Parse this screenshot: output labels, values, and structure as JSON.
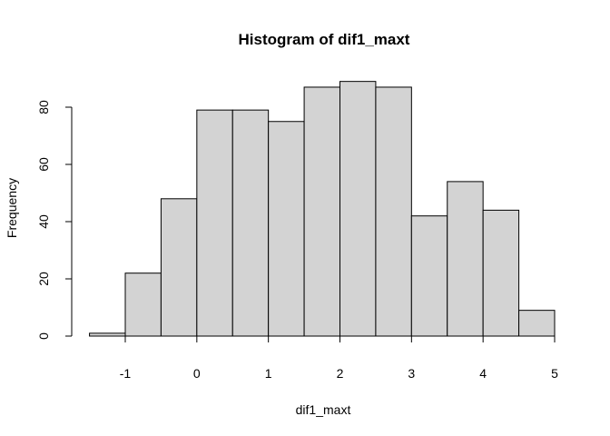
{
  "chart_data": {
    "type": "bar",
    "subtype": "histogram",
    "title": "Histogram of dif1_maxt",
    "xlabel": "dif1_maxt",
    "ylabel": "Frequency",
    "bins": [
      {
        "start": -1.5,
        "end": -1.0,
        "count": 1
      },
      {
        "start": -1.0,
        "end": -0.5,
        "count": 22
      },
      {
        "start": -0.5,
        "end": 0.0,
        "count": 48
      },
      {
        "start": 0.0,
        "end": 0.5,
        "count": 79
      },
      {
        "start": 0.5,
        "end": 1.0,
        "count": 79
      },
      {
        "start": 1.0,
        "end": 1.5,
        "count": 75
      },
      {
        "start": 1.5,
        "end": 2.0,
        "count": 87
      },
      {
        "start": 2.0,
        "end": 2.5,
        "count": 89
      },
      {
        "start": 2.5,
        "end": 3.0,
        "count": 87
      },
      {
        "start": 3.0,
        "end": 3.5,
        "count": 42
      },
      {
        "start": 3.5,
        "end": 4.0,
        "count": 54
      },
      {
        "start": 4.0,
        "end": 4.5,
        "count": 44
      },
      {
        "start": 4.5,
        "end": 5.0,
        "count": 9
      }
    ],
    "xlim": [
      -1.5,
      5.0
    ],
    "ylim": [
      0,
      90
    ],
    "x_ticks": [
      -1,
      0,
      1,
      2,
      3,
      4,
      5
    ],
    "y_ticks": [
      0,
      20,
      40,
      60,
      80
    ],
    "grid": false,
    "bar_color": "#d3d3d3"
  }
}
